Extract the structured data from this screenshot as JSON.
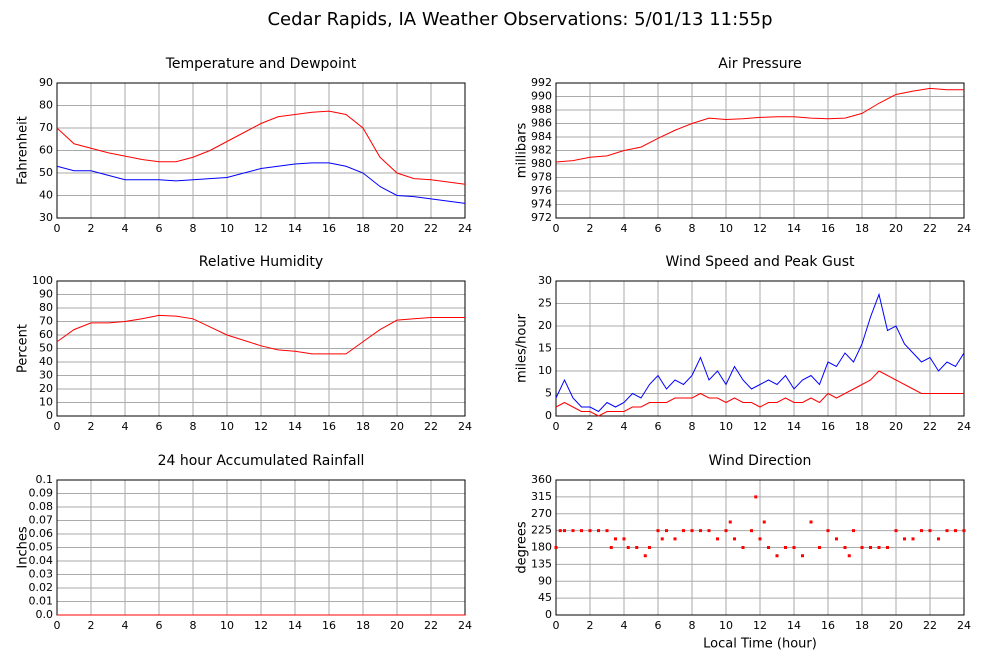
{
  "title": "Cedar Rapids, IA Weather Observations: 5/01/13 11:55p",
  "chart_data": [
    {
      "type": "line",
      "title": "Temperature and Dewpoint",
      "ylabel": "Fahrenheit",
      "x": [
        0,
        1,
        2,
        3,
        4,
        5,
        6,
        7,
        8,
        9,
        10,
        11,
        12,
        13,
        14,
        15,
        16,
        17,
        18,
        19,
        20,
        21,
        22,
        23,
        24
      ],
      "series": [
        {
          "color": "#ff0000",
          "values": [
            70,
            63,
            61,
            59,
            57.5,
            56,
            55,
            55,
            57,
            60,
            64,
            68,
            72,
            75,
            76,
            77,
            77.5,
            76,
            70,
            57,
            50,
            47.5,
            47,
            46,
            45
          ]
        },
        {
          "color": "#0000ff",
          "values": [
            53,
            51,
            51,
            49,
            47,
            47,
            47,
            46.5,
            47,
            47.5,
            48,
            50,
            52,
            53,
            54,
            54.5,
            54.5,
            53,
            50,
            44,
            40,
            39.5,
            38.5,
            37.5,
            36.5
          ]
        }
      ],
      "xlim": [
        0,
        24
      ],
      "ylim": [
        30,
        90
      ],
      "xticks": [
        0,
        2,
        4,
        6,
        8,
        10,
        12,
        14,
        16,
        18,
        20,
        22,
        24
      ],
      "yticks": [
        30,
        40,
        50,
        60,
        70,
        80,
        90
      ],
      "grid": true
    },
    {
      "type": "line",
      "title": "Air Pressure",
      "ylabel": "millibars",
      "x": [
        0,
        1,
        2,
        3,
        4,
        5,
        6,
        7,
        8,
        9,
        10,
        11,
        12,
        13,
        14,
        15,
        16,
        17,
        18,
        19,
        20,
        21,
        22,
        23,
        24
      ],
      "series": [
        {
          "color": "#ff0000",
          "values": [
            980.3,
            980.5,
            981,
            981.2,
            982,
            982.5,
            983.8,
            985,
            986,
            986.8,
            986.6,
            986.7,
            986.9,
            987,
            987,
            986.8,
            986.7,
            986.8,
            987.5,
            989,
            990.3,
            990.8,
            991.2,
            991,
            991
          ]
        }
      ],
      "xlim": [
        0,
        24
      ],
      "ylim": [
        972,
        992
      ],
      "xticks": [
        0,
        2,
        4,
        6,
        8,
        10,
        12,
        14,
        16,
        18,
        20,
        22,
        24
      ],
      "yticks": [
        972,
        974,
        976,
        978,
        980,
        982,
        984,
        986,
        988,
        990,
        992
      ],
      "grid": true
    },
    {
      "type": "line",
      "title": "Relative Humidity",
      "ylabel": "Percent",
      "x": [
        0,
        1,
        2,
        3,
        4,
        5,
        6,
        7,
        8,
        9,
        10,
        11,
        12,
        13,
        14,
        15,
        16,
        17,
        18,
        19,
        20,
        21,
        22,
        23,
        24
      ],
      "series": [
        {
          "color": "#ff0000",
          "values": [
            55,
            64,
            69,
            69,
            70,
            72,
            74.5,
            74,
            72,
            66,
            60,
            56,
            52,
            49,
            48,
            46,
            46,
            46,
            55,
            64,
            71,
            72,
            73,
            73,
            73
          ]
        }
      ],
      "xlim": [
        0,
        24
      ],
      "ylim": [
        0,
        100
      ],
      "xticks": [
        0,
        2,
        4,
        6,
        8,
        10,
        12,
        14,
        16,
        18,
        20,
        22,
        24
      ],
      "yticks": [
        0,
        10,
        20,
        30,
        40,
        50,
        60,
        70,
        80,
        90,
        100
      ],
      "grid": true
    },
    {
      "type": "line",
      "title": "Wind Speed and Peak Gust",
      "ylabel": "miles/hour",
      "x": [
        0,
        0.5,
        1,
        1.5,
        2,
        2.5,
        3,
        3.5,
        4,
        4.5,
        5,
        5.5,
        6,
        6.5,
        7,
        7.5,
        8,
        8.5,
        9,
        9.5,
        10,
        10.5,
        11,
        11.5,
        12,
        12.5,
        13,
        13.5,
        14,
        14.5,
        15,
        15.5,
        16,
        16.5,
        17,
        17.5,
        18,
        18.5,
        19,
        19.5,
        20,
        20.5,
        21,
        21.5,
        22,
        22.5,
        23,
        23.5,
        24
      ],
      "series": [
        {
          "color": "#0000ff",
          "values": [
            4,
            8,
            4,
            2,
            2,
            1,
            3,
            2,
            3,
            5,
            4,
            7,
            9,
            6,
            8,
            7,
            9,
            13,
            8,
            10,
            7,
            11,
            8,
            6,
            7,
            8,
            7,
            9,
            6,
            8,
            9,
            7,
            12,
            11,
            14,
            12,
            16,
            22,
            27,
            19,
            20,
            16,
            14,
            12,
            13,
            10,
            12,
            11,
            14
          ]
        },
        {
          "color": "#ff0000",
          "values": [
            2,
            3,
            2,
            1,
            1,
            0,
            1,
            1,
            1,
            2,
            2,
            3,
            3,
            3,
            4,
            4,
            4,
            5,
            4,
            4,
            3,
            4,
            3,
            3,
            2,
            3,
            3,
            4,
            3,
            3,
            4,
            3,
            5,
            4,
            5,
            6,
            7,
            8,
            10,
            9,
            8,
            7,
            6,
            5,
            5,
            5,
            5,
            5,
            5
          ]
        }
      ],
      "xlim": [
        0,
        24
      ],
      "ylim": [
        0,
        30
      ],
      "xticks": [
        0,
        2,
        4,
        6,
        8,
        10,
        12,
        14,
        16,
        18,
        20,
        22,
        24
      ],
      "yticks": [
        0,
        5,
        10,
        15,
        20,
        25,
        30
      ],
      "grid": true
    },
    {
      "type": "line",
      "title": "24 hour Accumulated Rainfall",
      "ylabel": "Inches",
      "x": [
        0,
        24
      ],
      "series": [
        {
          "color": "#ff0000",
          "values": [
            0,
            0
          ]
        }
      ],
      "xlim": [
        0,
        24
      ],
      "ylim": [
        0,
        0.1
      ],
      "xticks": [
        0,
        2,
        4,
        6,
        8,
        10,
        12,
        14,
        16,
        18,
        20,
        22,
        24
      ],
      "yticks": [
        {
          "value": 0,
          "label": "0.0"
        },
        0.01,
        0.02,
        0.03,
        0.04,
        0.05,
        0.06,
        0.07,
        0.08,
        0.09,
        0.1
      ],
      "grid": true
    },
    {
      "type": "scatter",
      "title": "Wind Direction",
      "ylabel": "degrees",
      "xlabel": "Local Time (hour)",
      "x": [
        0,
        0.25,
        0.5,
        1,
        1.5,
        2,
        2.5,
        3,
        3.25,
        3.5,
        4,
        4.25,
        4.75,
        5.25,
        5.5,
        6,
        6.25,
        6.5,
        7,
        7.5,
        8,
        8.5,
        9,
        9.5,
        10,
        10.25,
        10.5,
        11,
        11.5,
        11.75,
        12,
        12.25,
        12.5,
        13,
        13.5,
        14,
        14.5,
        15,
        15.5,
        16,
        16.5,
        17,
        17.25,
        17.5,
        18,
        18.5,
        19,
        19.5,
        20,
        20.5,
        21,
        21.5,
        22,
        22.5,
        23,
        23.5,
        24
      ],
      "series": [
        {
          "color": "#ff0000",
          "values": [
            180,
            225,
            225,
            225,
            225,
            225,
            225,
            225,
            180,
            203,
            203,
            180,
            180,
            158,
            180,
            225,
            203,
            225,
            203,
            225,
            225,
            225,
            225,
            203,
            225,
            248,
            203,
            180,
            225,
            315,
            203,
            248,
            180,
            158,
            180,
            180,
            158,
            248,
            180,
            225,
            203,
            180,
            158,
            225,
            180,
            180,
            180,
            180,
            225,
            203,
            203,
            225,
            225,
            203,
            225,
            225,
            225
          ]
        }
      ],
      "xlim": [
        0,
        24
      ],
      "ylim": [
        0,
        360
      ],
      "xticks": [
        0,
        2,
        4,
        6,
        8,
        10,
        12,
        14,
        16,
        18,
        20,
        22,
        24
      ],
      "yticks": [
        0,
        45,
        90,
        135,
        180,
        225,
        270,
        315,
        360
      ],
      "grid": true
    }
  ]
}
